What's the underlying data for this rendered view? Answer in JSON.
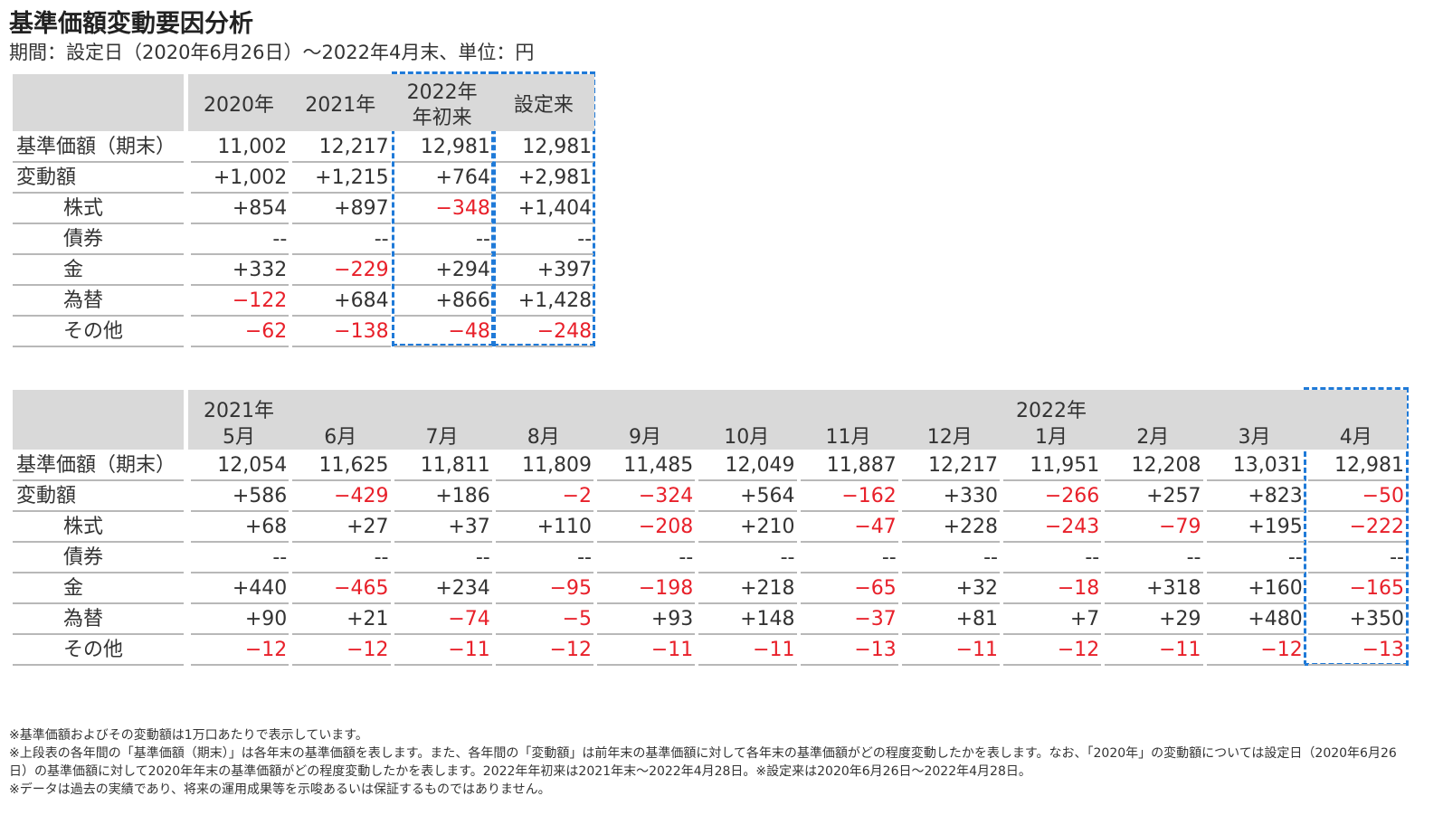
{
  "header": {
    "title": "基準価額変動要因分析",
    "subtitle": "期間：設定日（2020年6月26日）～2022年4月末、単位：円"
  },
  "table1": {
    "columns": [
      [
        "2020年"
      ],
      [
        "2021年"
      ],
      [
        "2022年",
        "年初来"
      ],
      [
        "設定来"
      ]
    ],
    "rows": [
      {
        "label": "基準価額（期末）",
        "values": [
          "11,002",
          "12,217",
          "12,981",
          "12,981"
        ]
      },
      {
        "label": "変動額",
        "values": [
          "+1,002",
          "+1,215",
          "+764",
          "+2,981"
        ]
      },
      {
        "label": "株式",
        "values": [
          "+854",
          "+897",
          "−348",
          "+1,404"
        ]
      },
      {
        "label": "債券",
        "values": [
          "‐‐",
          "‐‐",
          "‐‐",
          "‐‐"
        ]
      },
      {
        "label": "金",
        "values": [
          "+332",
          "−229",
          "+294",
          "+397"
        ]
      },
      {
        "label": "為替",
        "values": [
          "−122",
          "+684",
          "+866",
          "+1,428"
        ]
      },
      {
        "label": "その他",
        "values": [
          "−62",
          "−138",
          "−48",
          "−248"
        ]
      }
    ]
  },
  "table2": {
    "columns": [
      {
        "year": "2021年",
        "month": "5月"
      },
      {
        "month": "6月"
      },
      {
        "month": "7月"
      },
      {
        "month": "8月"
      },
      {
        "month": "9月"
      },
      {
        "month": "10月"
      },
      {
        "month": "11月"
      },
      {
        "month": "12月"
      },
      {
        "year": "2022年",
        "month": "1月"
      },
      {
        "month": "2月"
      },
      {
        "month": "3月"
      },
      {
        "month": "4月"
      }
    ],
    "rows": [
      {
        "label": "基準価額（期末）",
        "values": [
          "12,054",
          "11,625",
          "11,811",
          "11,809",
          "11,485",
          "12,049",
          "11,887",
          "12,217",
          "11,951",
          "12,208",
          "13,031",
          "12,981"
        ]
      },
      {
        "label": "変動額",
        "values": [
          "+586",
          "−429",
          "+186",
          "−2",
          "−324",
          "+564",
          "−162",
          "+330",
          "−266",
          "+257",
          "+823",
          "−50"
        ]
      },
      {
        "label": "株式",
        "values": [
          "+68",
          "+27",
          "+37",
          "+110",
          "−208",
          "+210",
          "−47",
          "+228",
          "−243",
          "−79",
          "+195",
          "−222"
        ]
      },
      {
        "label": "債券",
        "values": [
          "‐‐",
          "‐‐",
          "‐‐",
          "‐‐",
          "‐‐",
          "‐‐",
          "‐‐",
          "‐‐",
          "‐‐",
          "‐‐",
          "‐‐",
          "‐‐"
        ]
      },
      {
        "label": "金",
        "values": [
          "+440",
          "−465",
          "+234",
          "−95",
          "−198",
          "+218",
          "−65",
          "+32",
          "−18",
          "+318",
          "+160",
          "−165"
        ]
      },
      {
        "label": "為替",
        "values": [
          "+90",
          "+21",
          "−74",
          "−5",
          "+93",
          "+148",
          "−37",
          "+81",
          "+7",
          "+29",
          "+480",
          "+350"
        ]
      },
      {
        "label": "その他",
        "values": [
          "−12",
          "−12",
          "−11",
          "−12",
          "−11",
          "−11",
          "−13",
          "−11",
          "−12",
          "−11",
          "−12",
          "−13"
        ]
      }
    ]
  },
  "footnotes": [
    "※基準価額およびその変動額は1万口あたりで表示しています。",
    "※上段表の各年間の「基準価額（期末）」は各年末の基準価額を表します。また、各年間の「変動額」は前年末の基準価額に対して各年末の基準価額がどの程度変動したかを表します。なお、「2020年」の変動額については設定日（2020年6月26日）の基準価額に対して2020年年末の基準価額がどの程度変動したかを表します。2022年年初来は2021年末～2022年4月28日。※設定来は2020年6月26日～2022年4月28日。",
    "※データは過去の実績であり、将来の運用成果等を示唆あるいは保証するものではありません。"
  ]
}
